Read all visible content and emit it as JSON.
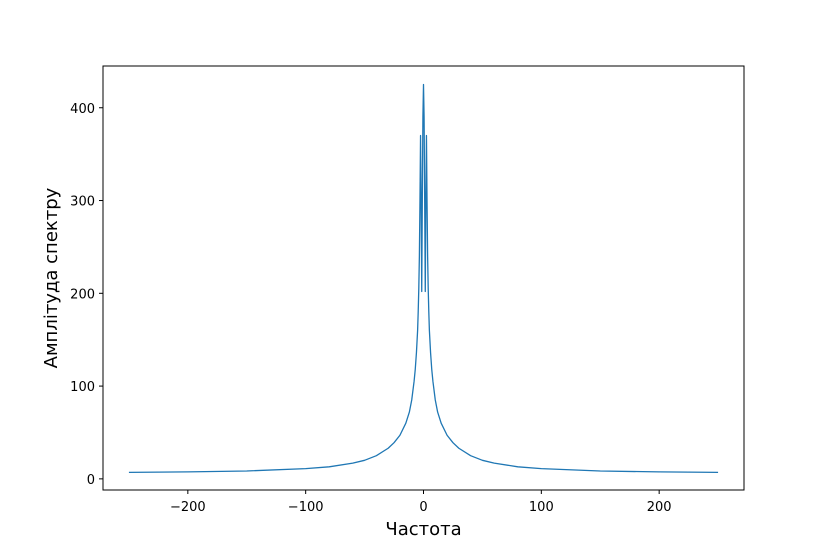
{
  "chart_data": {
    "type": "line",
    "title": "",
    "xlabel": "Частота",
    "ylabel": "Амплітуда спектру",
    "xlim": [
      -272,
      272
    ],
    "ylim": [
      -12,
      445
    ],
    "xticks": [
      -200,
      -100,
      0,
      100,
      200
    ],
    "xtick_labels": [
      "−200",
      "−100",
      "0",
      "100",
      "200"
    ],
    "yticks": [
      0,
      100,
      200,
      300,
      400
    ],
    "ytick_labels": [
      "0",
      "100",
      "200",
      "300",
      "400"
    ],
    "grid": false,
    "legend": "none",
    "series": [
      {
        "color": "#1f77b4",
        "x": [
          -250,
          -200,
          -150,
          -100,
          -80,
          -60,
          -50,
          -40,
          -30,
          -25,
          -20,
          -15,
          -12,
          -10,
          -8,
          -7,
          -6,
          -5,
          -4.5,
          -4,
          -3.5,
          -3,
          -2.5,
          -2,
          -1.5,
          -1,
          -0.5,
          0,
          0.5,
          1,
          1.5,
          2,
          2.5,
          3,
          3.5,
          4,
          4.5,
          5,
          6,
          7,
          8,
          10,
          12,
          15,
          20,
          25,
          30,
          40,
          50,
          60,
          80,
          100,
          150,
          200,
          250
        ],
        "y": [
          7,
          7.5,
          8.5,
          11,
          13,
          17,
          20,
          25,
          33,
          39,
          47,
          60,
          72,
          85,
          105,
          118,
          136,
          160,
          180,
          205,
          240,
          300,
          370,
          300,
          202,
          300,
          390,
          425,
          390,
          300,
          202,
          300,
          370,
          300,
          240,
          205,
          180,
          160,
          136,
          118,
          105,
          85,
          72,
          60,
          47,
          39,
          33,
          25,
          20,
          17,
          13,
          11,
          8.5,
          7.5,
          7
        ]
      }
    ]
  }
}
